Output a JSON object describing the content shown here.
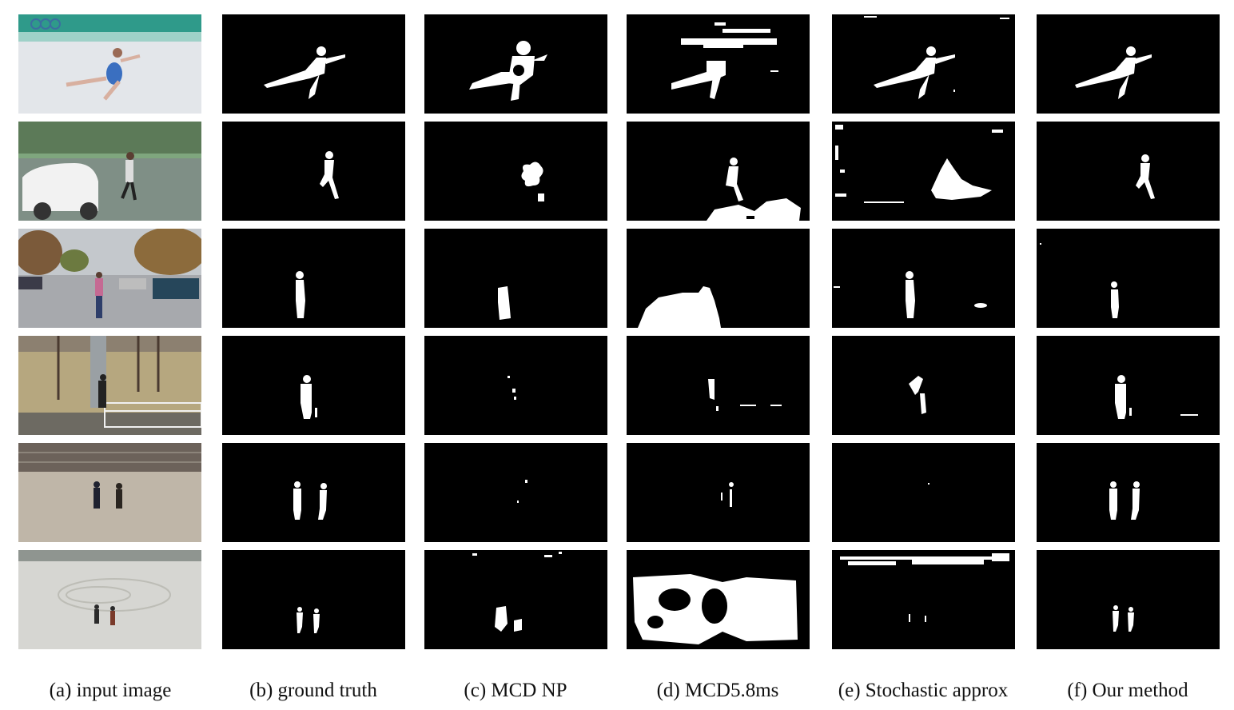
{
  "figure": {
    "captions": {
      "a": "(a) input image",
      "b": "(b) ground truth",
      "c": "(c) MCD NP",
      "d": "(d) MCD5.8ms",
      "e": "(e) Stochastic approx",
      "f": "(f) Our method"
    },
    "rows": [
      "figure skater",
      "pedestrian and car",
      "person in parking lot",
      "person at fence",
      "two people on plaza",
      "two people on snowy plaza"
    ],
    "colors": {
      "mask_background": "#000000",
      "mask_foreground": "#ffffff",
      "caption_text": "#111111"
    }
  }
}
